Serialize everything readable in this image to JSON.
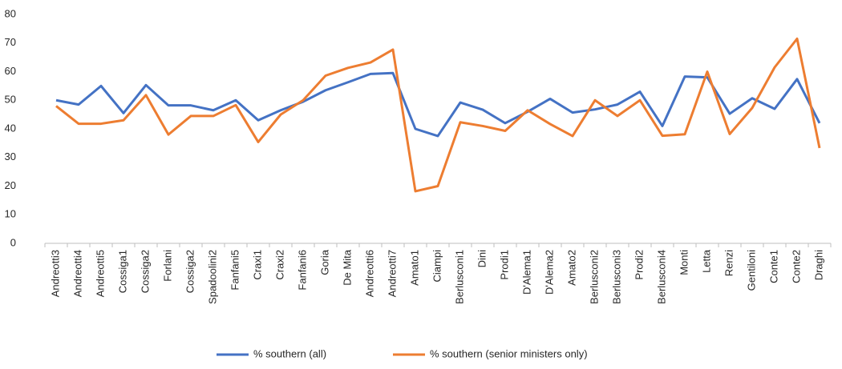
{
  "chart_data": {
    "type": "line",
    "categories": [
      "Andreotti3",
      "Andreotti4",
      "Andreotti5",
      "Cossiga1",
      "Cossiga2",
      "Forlani",
      "Cossiga2",
      "Spadoolini2",
      "Fanfani5",
      "Craxi1",
      "Craxi2",
      "Fanfani6",
      "Goria",
      "De Mita",
      "Andreotti6",
      "Andreotti7",
      "Amato1",
      "Ciampi",
      "Berlusconi1",
      "Dini",
      "Prodi1",
      "D'Alema1",
      "D'Alema2",
      "Amato2",
      "Berlusconi2",
      "Berlusconi3",
      "Prodi2",
      "Berlusconi4",
      "Monti",
      "Letta",
      "Renzi",
      "Gentiloni",
      "Conte1",
      "Conte2",
      "Draghi"
    ],
    "series": [
      {
        "name": "% southern (all)",
        "color": "#4472c4",
        "values": [
          50,
          48.5,
          55,
          45.5,
          55.3,
          48.2,
          48.2,
          46.5,
          50,
          43,
          46.5,
          49.5,
          53.5,
          56.3,
          59.2,
          59.5,
          40,
          37.5,
          49.2,
          46.7,
          42,
          46,
          50.5,
          45.7,
          46.8,
          48.5,
          53,
          41,
          58.3,
          58,
          45.3,
          50.7,
          47,
          57.4,
          42
        ]
      },
      {
        "name": "% southern (senior ministers only)",
        "color": "#ed7d31",
        "values": [
          48,
          41.8,
          41.8,
          43,
          51.8,
          38,
          44.5,
          44.5,
          48.3,
          35.4,
          45,
          50,
          58.6,
          61.3,
          63.2,
          67.7,
          18.2,
          20,
          42.3,
          41,
          39.3,
          46.5,
          41.7,
          37.5,
          50,
          44.5,
          50,
          37.6,
          38.1,
          60,
          38.2,
          47.3,
          61.5,
          71.5,
          33.3
        ]
      }
    ],
    "ylim": [
      0,
      80
    ],
    "yticks": [
      0,
      10,
      20,
      30,
      40,
      50,
      60,
      70,
      80
    ],
    "grid": false,
    "legend": "bottom"
  }
}
